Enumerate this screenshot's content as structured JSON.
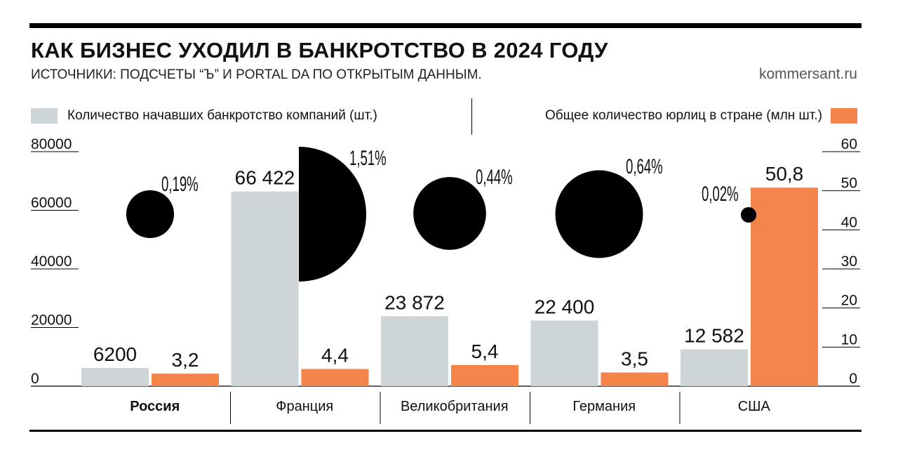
{
  "header": {
    "title": "КАК БИЗНЕС УХОДИЛ В БАНКРОТСТВО В 2024 ГОДУ",
    "subtitle": "ИСТОЧНИКИ: ПОДСЧЕТЫ “Ъ” И PORTAL DA ПО ОТКРЫТЫМ ДАННЫМ.",
    "site": "kommersant.ru"
  },
  "legend": {
    "left": "Количество начавших банкротство компаний (шт.)",
    "right": "Общее количество юрлиц в стране (млн шт.)"
  },
  "colors": {
    "bankrupt": "#cdd5d9",
    "entities": "#f5844a",
    "circle": "#000000"
  },
  "chart_data": {
    "type": "bar",
    "categories": [
      "Россия",
      "Франция",
      "Великобритания",
      "Германия",
      "США"
    ],
    "series": [
      {
        "name": "Количество начавших банкротство компаний (шт.)",
        "values": [
          6200,
          66422,
          23872,
          22400,
          12582
        ],
        "labels": [
          "6200",
          "66 422",
          "23 872",
          "22 400",
          "12 582"
        ],
        "axis": "left"
      },
      {
        "name": "Общее количество юрлиц в стране (млн шт.)",
        "values": [
          3.2,
          4.4,
          5.4,
          3.5,
          50.8
        ],
        "labels": [
          "3,2",
          "4,4",
          "5,4",
          "3,5",
          "50,8"
        ],
        "axis": "right"
      }
    ],
    "share_labels": [
      "0,19%",
      "1,51%",
      "0,44%",
      "0,64%",
      "0,02%"
    ],
    "share_values": [
      0.19,
      1.51,
      0.44,
      0.64,
      0.02
    ],
    "yleft_ticks": [
      "80000",
      "60000",
      "40000",
      "20000",
      "0"
    ],
    "yright_ticks": [
      "60",
      "50",
      "40",
      "30",
      "20",
      "10",
      "0"
    ],
    "yleft_lim": [
      0,
      80000
    ],
    "yright_lim": [
      0,
      60
    ],
    "highlight_category": "Россия"
  }
}
